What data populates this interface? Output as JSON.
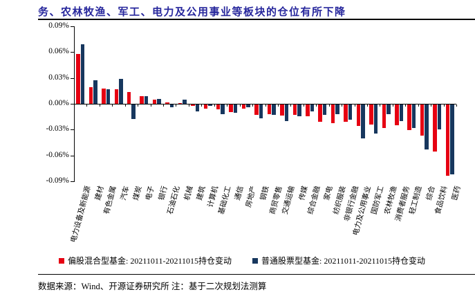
{
  "title": "务、农林牧渔、军工、电力及公用事业等板块的仓位有所下降",
  "source_note": "数据来源：Wind、开源证券研究所  注：基于二次规划法测算",
  "colors": {
    "title": "#26269c",
    "mixed_fund_red": "#e60012",
    "stock_fund_navy": "#17375e",
    "axis": "#000000"
  },
  "legend": [
    {
      "label": "偏股混合型基金: 20211011-20211015持仓变动",
      "color": "#e60012"
    },
    {
      "label": "普通股票型基金: 20211011-20211015持仓变动",
      "color": "#17375e"
    }
  ],
  "chart_data": {
    "type": "bar",
    "title": "务、农林牧渔、军工、电力及公用事业等板块的仓位有所下降",
    "unit": "%",
    "ylim": [
      -0.09,
      0.09
    ],
    "y_ticks": [
      "0.09%",
      "0.06%",
      "0.03%",
      "0.00%",
      "-0.03%",
      "-0.06%",
      "-0.09%"
    ],
    "grid": false,
    "legend_position": "bottom",
    "categories": [
      "电力设备及新能源",
      "建材",
      "有色金属",
      "汽车",
      "煤炭",
      "电子",
      "银行",
      "石油石化",
      "机械",
      "建筑",
      "计算机",
      "基础化工",
      "通信",
      "房地产",
      "钢铁",
      "商贸零售",
      "交通运输",
      "传媒",
      "综合金融",
      "家电",
      "纺织服装",
      "非银行金融",
      "电力及公用事业",
      "国防军工",
      "农林牧渔",
      "消费者服务",
      "轻工制造",
      "综合",
      "食品饮料",
      "医药"
    ],
    "series": [
      {
        "name": "偏股混合型基金: 20211011-20211015持仓变动",
        "color": "#e60012",
        "values": [
          0.058,
          0.019,
          0.018,
          0.017,
          0.014,
          0.009,
          0.005,
          0.002,
          0.001,
          -0.002,
          -0.005,
          -0.006,
          -0.009,
          -0.005,
          -0.012,
          -0.011,
          -0.013,
          -0.012,
          -0.014,
          -0.02,
          -0.022,
          -0.02,
          -0.025,
          -0.023,
          -0.027,
          -0.024,
          -0.03,
          -0.036,
          -0.055,
          -0.083
        ]
      },
      {
        "name": "普通股票型基金: 20211011-20211015持仓变动",
        "color": "#17375e",
        "values": [
          0.069,
          0.027,
          0.017,
          0.029,
          -0.017,
          0.009,
          0.006,
          -0.003,
          0.005,
          -0.008,
          -0.002,
          -0.011,
          -0.01,
          -0.003,
          -0.016,
          -0.012,
          -0.019,
          -0.014,
          -0.008,
          -0.012,
          -0.011,
          -0.018,
          -0.039,
          -0.034,
          -0.011,
          -0.019,
          -0.027,
          -0.052,
          -0.029,
          -0.081
        ]
      }
    ]
  }
}
